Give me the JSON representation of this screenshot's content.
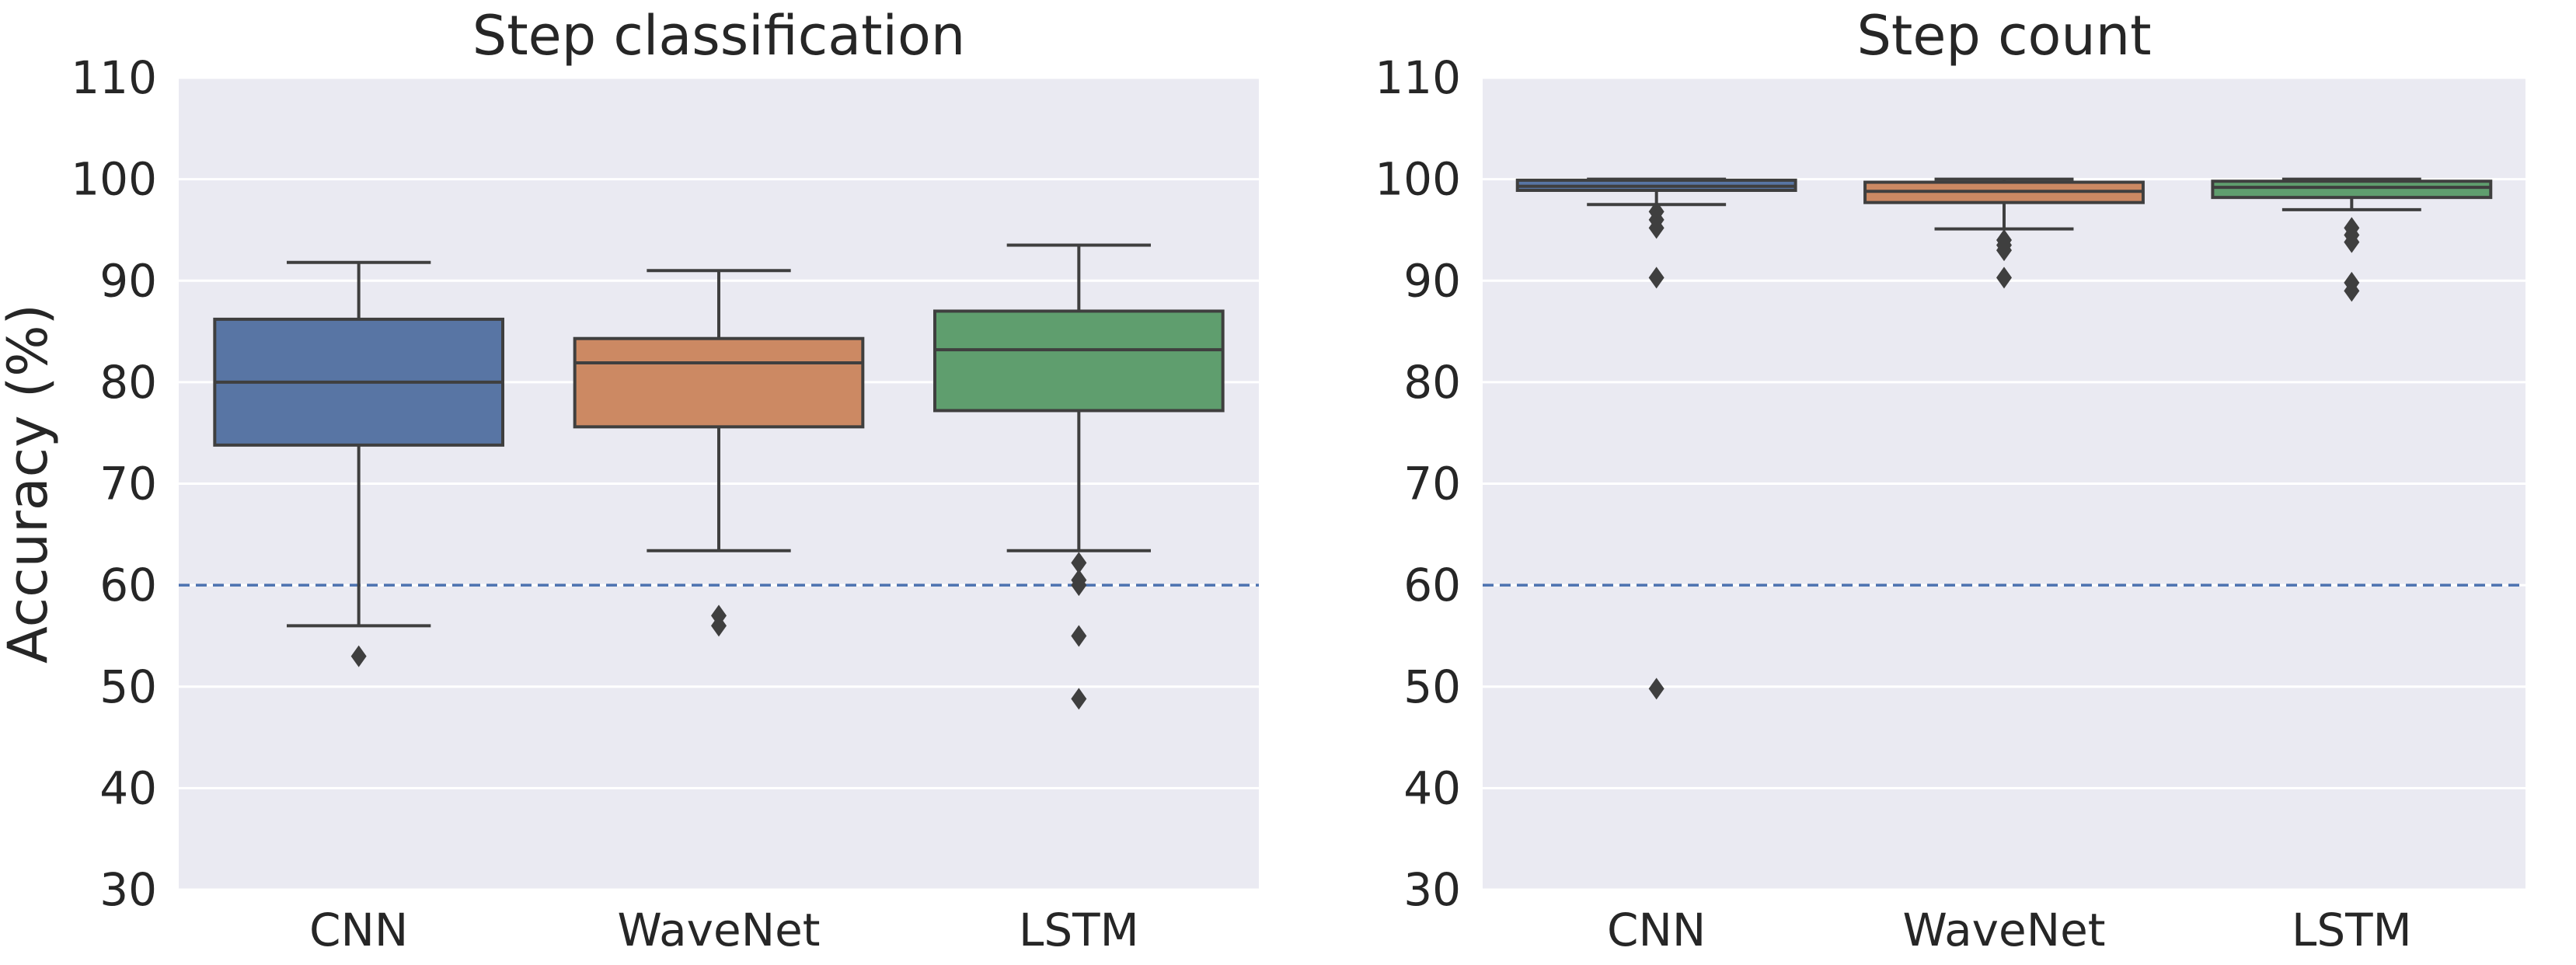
{
  "chart_data": [
    {
      "type": "box",
      "title": "Step classification",
      "ylabel": "Accuracy (%)",
      "xlabel": "",
      "ylim": [
        30,
        110
      ],
      "yticks": [
        30,
        40,
        50,
        60,
        70,
        80,
        90,
        100,
        110
      ],
      "categories": [
        "CNN",
        "WaveNet",
        "LSTM"
      ],
      "reference_line": {
        "y": 60,
        "style": "dashed",
        "color": "#4c72b0"
      },
      "grid": true,
      "boxes": [
        {
          "name": "CNN",
          "color": "#5875a4",
          "whisker_low": 56,
          "q1": 73.8,
          "median": 80,
          "q3": 86.2,
          "whisker_high": 91.8,
          "outliers": [
            53
          ]
        },
        {
          "name": "WaveNet",
          "color": "#cc8963",
          "whisker_low": 63.4,
          "q1": 75.6,
          "median": 81.9,
          "q3": 84.3,
          "whisker_high": 91,
          "outliers": [
            57,
            56
          ]
        },
        {
          "name": "LSTM",
          "color": "#5f9e6e",
          "whisker_low": 63.4,
          "q1": 77.2,
          "median": 83.2,
          "q3": 87,
          "whisker_high": 93.5,
          "outliers": [
            62.2,
            60.5,
            60,
            55,
            48.8
          ]
        }
      ]
    },
    {
      "type": "box",
      "title": "Step count",
      "ylabel": "",
      "xlabel": "",
      "ylim": [
        30,
        110
      ],
      "yticks": [
        30,
        40,
        50,
        60,
        70,
        80,
        90,
        100,
        110
      ],
      "categories": [
        "CNN",
        "WaveNet",
        "LSTM"
      ],
      "reference_line": {
        "y": 60,
        "style": "dashed",
        "color": "#4c72b0"
      },
      "grid": true,
      "boxes": [
        {
          "name": "CNN",
          "color": "#5875a4",
          "whisker_low": 97.5,
          "q1": 98.9,
          "median": 99.3,
          "q3": 99.9,
          "whisker_high": 100,
          "outliers": [
            96.8,
            96,
            95.2,
            90.3,
            49.8
          ]
        },
        {
          "name": "WaveNet",
          "color": "#cc8963",
          "whisker_low": 95.1,
          "q1": 97.7,
          "median": 98.8,
          "q3": 99.7,
          "whisker_high": 100,
          "outliers": [
            94,
            93.5,
            93,
            90.3
          ]
        },
        {
          "name": "LSTM",
          "color": "#5f9e6e",
          "whisker_low": 97,
          "q1": 98.2,
          "median": 99.2,
          "q3": 99.8,
          "whisker_high": 100,
          "outliers": [
            95.2,
            94.5,
            93.8,
            89.8,
            89
          ]
        }
      ]
    }
  ]
}
